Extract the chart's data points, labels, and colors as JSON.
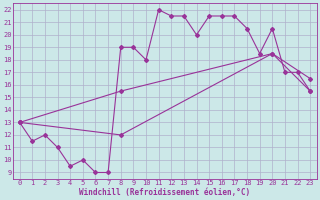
{
  "background_color": "#cce8e8",
  "grid_color": "#b0b0cc",
  "line_color": "#993399",
  "xlabel": "Windchill (Refroidissement éolien,°C)",
  "xlim": [
    -0.5,
    23.5
  ],
  "ylim": [
    8.5,
    22.5
  ],
  "xticks": [
    0,
    1,
    2,
    3,
    4,
    5,
    6,
    7,
    8,
    9,
    10,
    11,
    12,
    13,
    14,
    15,
    16,
    17,
    18,
    19,
    20,
    21,
    22,
    23
  ],
  "yticks": [
    9,
    10,
    11,
    12,
    13,
    14,
    15,
    16,
    17,
    18,
    19,
    20,
    21,
    22
  ],
  "line1_x": [
    0,
    1,
    2,
    3,
    4,
    5,
    6,
    7,
    8,
    9,
    10,
    11,
    12,
    13,
    14,
    15,
    16,
    17,
    18,
    19,
    20,
    21,
    22,
    23
  ],
  "line1_y": [
    13.0,
    11.5,
    12.0,
    11.0,
    9.5,
    10.0,
    9.0,
    9.0,
    19.0,
    19.0,
    18.0,
    22.0,
    21.5,
    21.5,
    20.0,
    21.5,
    21.5,
    21.5,
    20.5,
    18.5,
    20.5,
    17.0,
    17.0,
    15.5
  ],
  "line2_x": [
    0,
    8,
    20,
    23
  ],
  "line2_y": [
    13.0,
    12.0,
    18.5,
    16.5
  ],
  "line3_x": [
    0,
    8,
    20,
    23
  ],
  "line3_y": [
    13.0,
    15.5,
    18.5,
    15.5
  ],
  "marker_size": 2.0,
  "line_width": 0.8,
  "tick_fontsize": 5,
  "xlabel_fontsize": 5.5
}
